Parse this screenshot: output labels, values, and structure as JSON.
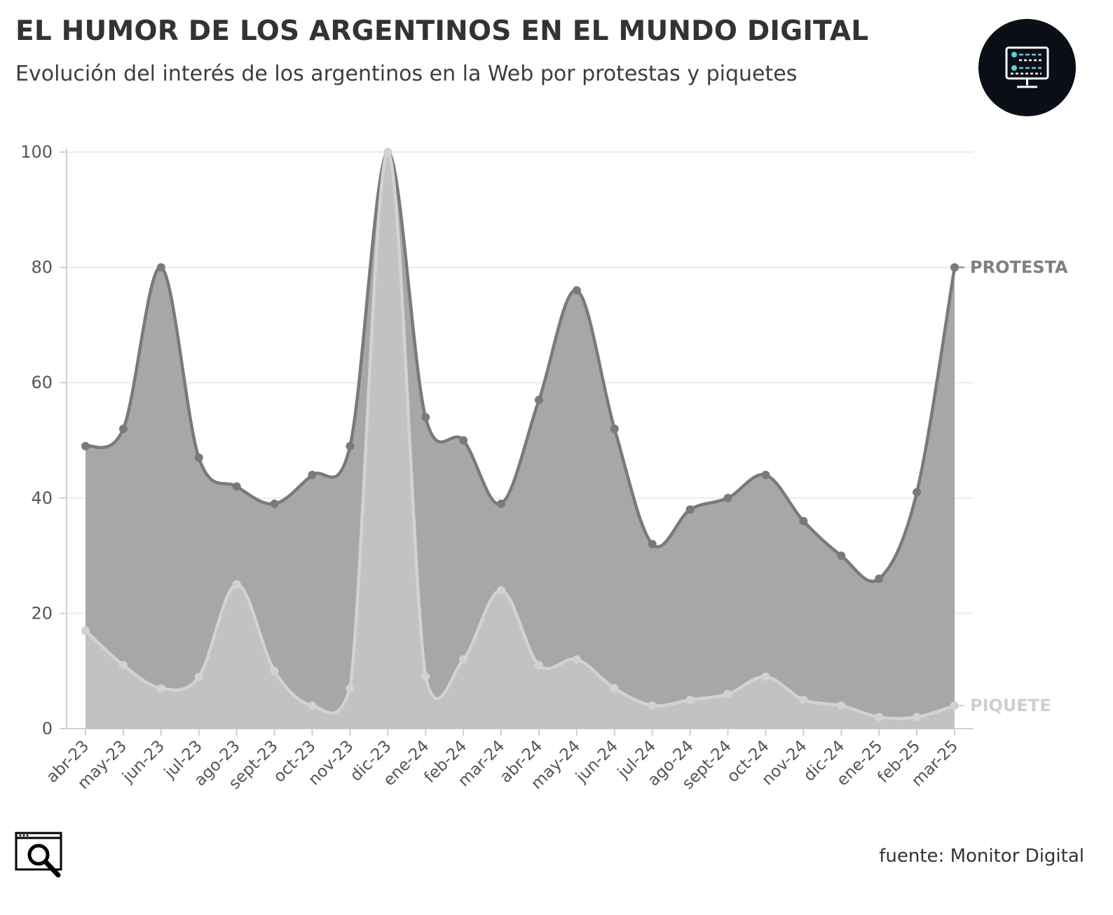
{
  "header": {
    "title": "EL HUMOR DE LOS ARGENTINOS EN EL MUNDO DIGITAL",
    "subtitle": "Evolución del interés de los argentinos en la Web por protestas y piquetes",
    "logo_icon": "monitor-dashboard-icon"
  },
  "footer": {
    "source": "fuente: Monitor Digital",
    "logo_icon": "browser-search-icon"
  },
  "colors": {
    "protesta_area": "#a8a7a8",
    "protesta_line": "#7a7a7a",
    "piquete_area": "#c2c2c1",
    "piquete_line": "#d2d2d2",
    "protesta_label": "#7f7f7f",
    "piquete_label": "#cfcfcf",
    "grid": "#ececec",
    "logo_bg": "#0b0d17",
    "logo_accent": "#5fd0d6"
  },
  "chart_data": {
    "type": "area",
    "categories": [
      "abr-23",
      "may-23",
      "jun-23",
      "jul-23",
      "ago-23",
      "sept-23",
      "oct-23",
      "nov-23",
      "dic-23",
      "ene-24",
      "feb-24",
      "mar-24",
      "abr-24",
      "may-24",
      "jun-24",
      "jul-24",
      "ago-24",
      "sept-24",
      "oct-24",
      "nov-24",
      "dic-24",
      "ene-25",
      "feb-25",
      "mar-25"
    ],
    "series": [
      {
        "name": "PROTESTA",
        "values": [
          49,
          52,
          80,
          47,
          42,
          39,
          44,
          49,
          100,
          54,
          50,
          39,
          57,
          76,
          52,
          32,
          38,
          40,
          44,
          36,
          30,
          26,
          41,
          80
        ]
      },
      {
        "name": "PIQUETE",
        "values": [
          17,
          11,
          7,
          9,
          25,
          10,
          4,
          7,
          100,
          9,
          12,
          24,
          11,
          12,
          7,
          4,
          5,
          6,
          9,
          5,
          4,
          2,
          2,
          4
        ]
      }
    ],
    "ylim": [
      0,
      100
    ],
    "yticks": [
      0,
      20,
      40,
      60,
      80,
      100
    ],
    "grid": true,
    "legend": "end-of-line labels, right"
  }
}
